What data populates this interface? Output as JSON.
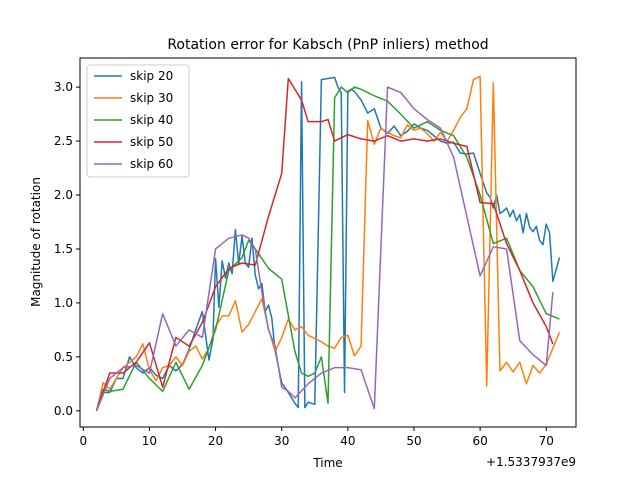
{
  "chart_data": {
    "type": "line",
    "title": "Rotation error for Kabsch (PnP inliers) method",
    "xlabel": "Time",
    "ylabel": "Magnitude of rotation",
    "x_offset_label": "+1.5337937e9",
    "xlim": [
      -0.5,
      74.5
    ],
    "ylim": [
      -0.15,
      3.27
    ],
    "xticks": [
      0,
      10,
      20,
      30,
      40,
      50,
      60,
      70
    ],
    "yticks": [
      0.0,
      0.5,
      1.0,
      1.5,
      2.0,
      2.5,
      3.0
    ],
    "xtick_labels": [
      "0",
      "10",
      "20",
      "30",
      "40",
      "50",
      "60",
      "70"
    ],
    "ytick_labels": [
      "0.0",
      "0.5",
      "1.0",
      "1.5",
      "2.0",
      "2.5",
      "3.0"
    ],
    "legend_position": "upper left",
    "grid": false,
    "series": [
      {
        "name": "skip 20",
        "color": "#1f77b4",
        "x": [
          2,
          3,
          4,
          5,
          6,
          7,
          8,
          9,
          10,
          11,
          12,
          13,
          14,
          15,
          16,
          17,
          18,
          19,
          19.6,
          20,
          20.5,
          21,
          21.5,
          22,
          22.5,
          23,
          23.5,
          24,
          24.5,
          25,
          25.5,
          26,
          26.5,
          27,
          27.5,
          28,
          28.5,
          29,
          30,
          31,
          32,
          32.5,
          33,
          33.5,
          34,
          35,
          36,
          37,
          38,
          38.5,
          39,
          39.5,
          40,
          40.5,
          41,
          42,
          43,
          44,
          45,
          46,
          47,
          48,
          49,
          50,
          51,
          52,
          53,
          54,
          55,
          56,
          57,
          58,
          59,
          60,
          61,
          61.5,
          62,
          62.5,
          63,
          63.5,
          64,
          64.5,
          65,
          65.5,
          66,
          66.5,
          67,
          67.5,
          68,
          68.5,
          69,
          69.5,
          70,
          70.5,
          71,
          72
        ],
        "y": [
          0.0,
          0.17,
          0.17,
          0.3,
          0.3,
          0.5,
          0.4,
          0.35,
          0.4,
          0.33,
          0.3,
          0.42,
          0.37,
          0.43,
          0.57,
          0.75,
          0.92,
          0.47,
          0.66,
          1.41,
          0.96,
          1.39,
          1.23,
          1.37,
          1.27,
          1.68,
          1.36,
          1.62,
          1.37,
          1.33,
          1.6,
          1.26,
          1.13,
          1.18,
          0.92,
          0.98,
          0.86,
          0.56,
          0.26,
          0.17,
          0.07,
          0.03,
          3.05,
          0.03,
          0.08,
          0.06,
          3.07,
          3.08,
          3.09,
          3.0,
          2.95,
          0.17,
          2.96,
          2.98,
          2.96,
          2.88,
          2.76,
          2.8,
          2.62,
          2.57,
          2.64,
          2.55,
          2.59,
          2.66,
          2.62,
          2.6,
          2.55,
          2.5,
          2.48,
          2.49,
          2.39,
          2.38,
          2.39,
          2.2,
          2.02,
          1.98,
          1.88,
          2.0,
          1.83,
          1.85,
          1.88,
          1.8,
          1.86,
          1.76,
          1.82,
          1.65,
          1.83,
          1.7,
          1.66,
          1.71,
          1.58,
          1.54,
          1.73,
          1.65,
          1.2,
          1.42
        ]
      },
      {
        "name": "skip 30",
        "color": "#ff7f0e",
        "x": [
          2,
          3,
          4,
          5,
          6,
          7,
          8,
          9,
          10,
          11,
          12,
          13,
          14,
          15,
          16,
          17,
          18,
          19,
          20,
          21,
          22,
          23,
          24,
          25,
          26,
          27,
          28,
          29,
          30,
          31,
          32,
          33,
          34,
          35,
          36,
          37,
          38,
          39,
          40,
          41,
          42,
          43,
          44,
          45,
          46,
          47,
          48,
          49,
          50,
          51,
          52,
          53,
          54,
          55,
          56,
          57,
          58,
          59,
          60,
          61,
          62,
          63,
          64,
          65,
          66,
          67,
          68,
          69,
          70,
          71,
          72
        ],
        "y": [
          0.0,
          0.26,
          0.2,
          0.3,
          0.4,
          0.45,
          0.5,
          0.62,
          0.38,
          0.28,
          0.4,
          0.42,
          0.5,
          0.42,
          0.55,
          0.6,
          0.48,
          0.58,
          0.78,
          0.88,
          0.88,
          1.02,
          0.73,
          0.8,
          0.92,
          1.04,
          0.76,
          0.55,
          0.68,
          0.85,
          0.75,
          0.78,
          0.7,
          0.67,
          0.64,
          0.6,
          0.58,
          0.68,
          0.7,
          0.51,
          0.6,
          2.69,
          2.47,
          2.62,
          2.58,
          2.55,
          2.53,
          2.65,
          2.6,
          2.62,
          2.57,
          2.5,
          2.58,
          2.5,
          2.6,
          2.72,
          2.8,
          3.07,
          3.1,
          0.23,
          3.04,
          0.37,
          0.45,
          0.36,
          0.45,
          0.25,
          0.42,
          0.35,
          0.43,
          0.58,
          0.73
        ]
      },
      {
        "name": "skip 40",
        "color": "#2ca02c",
        "x": [
          2,
          3,
          4,
          6,
          8,
          10,
          12,
          14,
          16,
          18,
          20,
          22,
          24,
          25,
          26,
          28,
          30,
          32,
          33,
          34,
          35,
          36,
          37,
          38,
          39,
          40,
          41,
          42,
          44,
          46,
          48,
          50,
          52,
          54,
          56,
          58,
          60,
          62,
          64,
          66,
          68,
          70,
          72
        ],
        "y": [
          0.0,
          0.2,
          0.18,
          0.2,
          0.45,
          0.3,
          0.18,
          0.45,
          0.2,
          0.42,
          0.75,
          1.3,
          1.42,
          1.58,
          1.5,
          1.32,
          1.22,
          0.55,
          0.35,
          0.32,
          0.35,
          0.5,
          0.07,
          2.9,
          3.0,
          2.95,
          3.0,
          2.98,
          2.92,
          2.87,
          2.75,
          2.62,
          2.68,
          2.6,
          2.55,
          2.35,
          2.0,
          1.55,
          1.6,
          1.3,
          1.15,
          0.9,
          0.85
        ]
      },
      {
        "name": "skip 50",
        "color": "#d62728",
        "x": [
          2,
          4,
          6,
          8,
          10,
          12,
          14,
          16,
          18,
          20,
          22,
          24,
          26,
          28,
          30,
          31,
          33,
          34,
          36,
          37,
          38,
          40,
          42,
          44,
          46,
          48,
          50,
          52,
          54,
          56,
          58,
          60,
          62,
          64,
          66,
          68,
          70,
          71
        ],
        "y": [
          0.0,
          0.35,
          0.35,
          0.45,
          0.63,
          0.22,
          0.68,
          0.6,
          0.82,
          1.15,
          1.32,
          1.37,
          1.35,
          1.8,
          2.2,
          3.08,
          2.88,
          2.68,
          2.68,
          2.7,
          2.5,
          2.56,
          2.52,
          2.5,
          2.55,
          2.5,
          2.52,
          2.5,
          2.52,
          2.48,
          2.45,
          1.93,
          1.92,
          1.55,
          1.3,
          1.0,
          0.78,
          0.62
        ]
      },
      {
        "name": "skip 60",
        "color": "#9467bd",
        "x": [
          2,
          4,
          6,
          8,
          10,
          12,
          14,
          16,
          18,
          20,
          22,
          24,
          25,
          26,
          27,
          28,
          29,
          30,
          31,
          32,
          34,
          36,
          38,
          40,
          42,
          44,
          46,
          48,
          50,
          52,
          54,
          56,
          58,
          60,
          62,
          64,
          66,
          68,
          70,
          71
        ],
        "y": [
          0.0,
          0.3,
          0.4,
          0.42,
          0.35,
          0.9,
          0.6,
          0.75,
          0.68,
          1.5,
          1.6,
          1.63,
          1.6,
          1.5,
          1.1,
          0.75,
          0.6,
          0.22,
          0.18,
          0.12,
          0.25,
          0.35,
          0.4,
          0.4,
          0.38,
          0.02,
          3.0,
          2.95,
          2.8,
          2.7,
          2.62,
          2.35,
          1.8,
          1.25,
          1.52,
          1.5,
          0.65,
          0.52,
          0.42,
          1.1
        ]
      }
    ]
  }
}
